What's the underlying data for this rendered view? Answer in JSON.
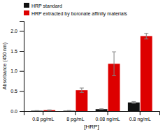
{
  "chart_data": {
    "type": "bar",
    "categories": [
      "0.8 pg/mL",
      "8 pg/mL",
      "0.08 ng/mL",
      "0.8 ng/mL"
    ],
    "series": [
      {
        "name": "HRP standard",
        "color": "#111111",
        "values": [
          0.008,
          0.008,
          0.048,
          0.215
        ],
        "errors": [
          0.004,
          0.006,
          0.008,
          0.022
        ]
      },
      {
        "name": "HRP extracted by boronate affinity materials",
        "color": "#dd0000",
        "values": [
          0.022,
          0.52,
          1.18,
          1.87
        ],
        "errors": [
          0.008,
          0.055,
          0.3,
          0.07
        ]
      }
    ],
    "xlabel": "[HRP]",
    "ylabel": "Absorbance (450 nm)",
    "ylim": [
      0,
      2.25
    ],
    "yticks": [
      {
        "value": 0.0,
        "label": "0.0"
      },
      {
        "value": 0.5,
        "label": "0.5"
      },
      {
        "value": 1.0,
        "label": "1.0"
      },
      {
        "value": 1.5,
        "label": "1.5"
      },
      {
        "value": 2.0,
        "label": "2.0"
      }
    ],
    "legend": "upper left",
    "grid": false
  }
}
